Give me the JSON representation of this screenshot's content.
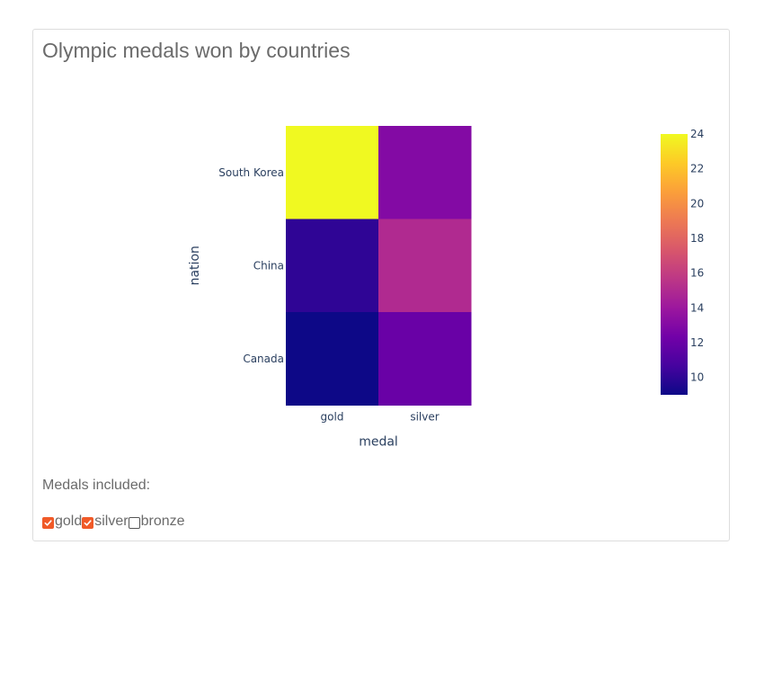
{
  "title": "Olympic medals won by countries",
  "controls": {
    "label": "Medals included:",
    "options": [
      {
        "label": "gold",
        "checked": true
      },
      {
        "label": "silver",
        "checked": true
      },
      {
        "label": "bronze",
        "checked": false
      }
    ],
    "accent_color": "#f05a28"
  },
  "chart_data": {
    "type": "heatmap",
    "title": "",
    "xlabel": "medal",
    "ylabel": "nation",
    "x": [
      "gold",
      "silver"
    ],
    "y": [
      "South Korea",
      "China",
      "Canada"
    ],
    "z": [
      [
        24,
        13
      ],
      [
        10,
        15
      ],
      [
        9,
        12
      ]
    ],
    "zlim": [
      9,
      24
    ],
    "colorbar_ticks": [
      10,
      12,
      14,
      16,
      18,
      20,
      22,
      24
    ],
    "colorscale": [
      "#0d0887",
      "#46039f",
      "#7201a8",
      "#9c179e",
      "#bd3786",
      "#d8576b",
      "#ed7953",
      "#fb9f3a",
      "#fdca26",
      "#f0f921"
    ],
    "grid": false
  }
}
